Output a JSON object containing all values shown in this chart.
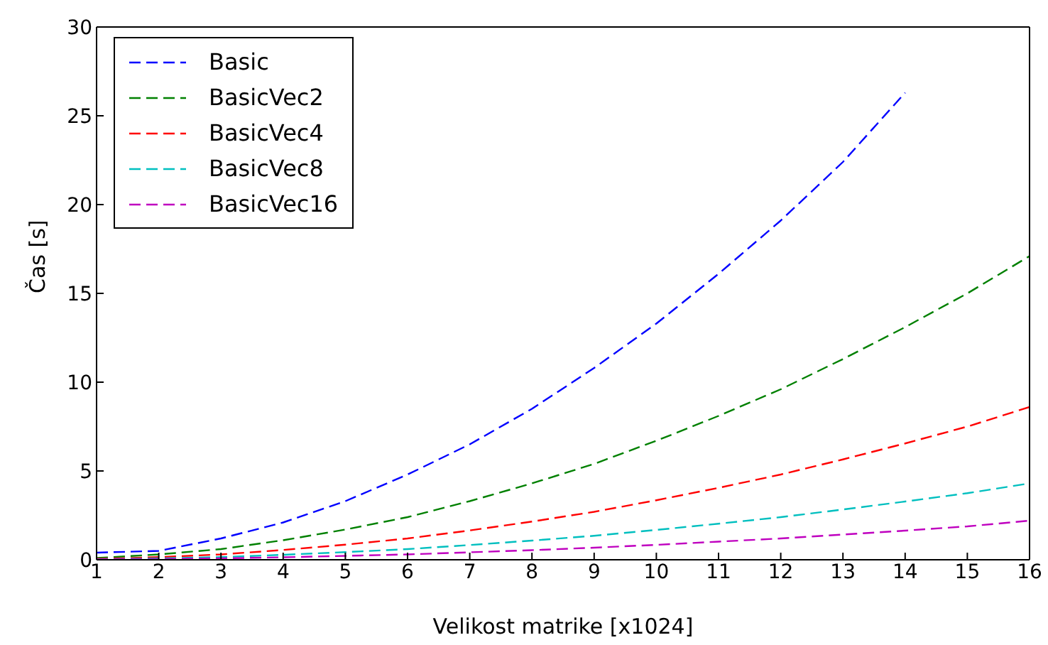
{
  "chart_data": {
    "type": "line",
    "xlabel": "Velikost matrike [x1024]",
    "ylabel": "Čas [s]",
    "x": [
      1,
      2,
      3,
      4,
      5,
      6,
      7,
      8,
      9,
      10,
      11,
      12,
      13,
      14,
      15,
      16
    ],
    "xlim": [
      1,
      16
    ],
    "xticks": [
      1,
      2,
      3,
      4,
      5,
      6,
      7,
      8,
      9,
      10,
      11,
      12,
      13,
      14,
      15,
      16
    ],
    "ylim": [
      0,
      30
    ],
    "yticks": [
      0,
      5,
      10,
      15,
      20,
      25,
      30
    ],
    "grid": false,
    "legend": "top left",
    "line_style": "dashed",
    "marker": "none",
    "series": [
      {
        "name": "Basic",
        "color": "#0000ff",
        "values": [
          0.4,
          0.5,
          1.2,
          2.1,
          3.3,
          4.8,
          6.5,
          8.5,
          10.8,
          13.3,
          16.1,
          19.1,
          22.4,
          26.3,
          null,
          null
        ]
      },
      {
        "name": "BasicVec2",
        "color": "#008000",
        "values": [
          0.1,
          0.3,
          0.6,
          1.1,
          1.7,
          2.4,
          3.3,
          4.3,
          5.4,
          6.7,
          8.1,
          9.6,
          11.3,
          13.1,
          15.0,
          17.1
        ]
      },
      {
        "name": "BasicVec4",
        "color": "#ff0000",
        "values": [
          0.05,
          0.15,
          0.3,
          0.55,
          0.85,
          1.2,
          1.65,
          2.15,
          2.7,
          3.35,
          4.05,
          4.8,
          5.65,
          6.55,
          7.5,
          8.6
        ]
      },
      {
        "name": "BasicVec8",
        "color": "#00bfbf",
        "values": [
          0.03,
          0.08,
          0.15,
          0.28,
          0.43,
          0.6,
          0.83,
          1.08,
          1.35,
          1.68,
          2.03,
          2.4,
          2.83,
          3.28,
          3.75,
          4.3
        ]
      },
      {
        "name": "BasicVec16",
        "color": "#bf00bf",
        "values": [
          0.02,
          0.04,
          0.08,
          0.14,
          0.22,
          0.3,
          0.42,
          0.54,
          0.68,
          0.84,
          1.02,
          1.2,
          1.42,
          1.64,
          1.88,
          2.2
        ]
      }
    ]
  }
}
